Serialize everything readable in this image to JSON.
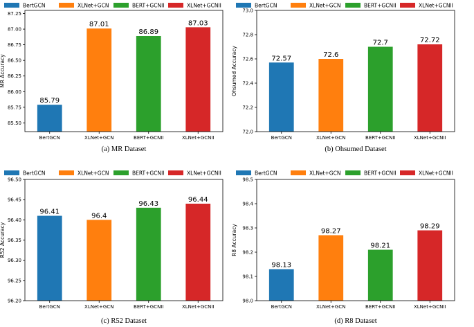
{
  "colors": [
    "#1f77b4",
    "#ff7f0e",
    "#2ca02c",
    "#d62728"
  ],
  "chart_data": [
    {
      "type": "bar",
      "categories": [
        "BertGCN",
        "XLNet+GCN",
        "BERT+GCNII",
        "XLNet+GCNII"
      ],
      "values": [
        85.79,
        87.01,
        86.89,
        87.03
      ],
      "value_labels": [
        "85.79",
        "87.01",
        "86.89",
        "87.03"
      ],
      "legend": [
        "BertGCN",
        "XLNet+GCN",
        "BERT+GCNII",
        "XLNet+GCNII"
      ],
      "ylabel": "MR Accuracy",
      "ylim": [
        85.36,
        87.3
      ],
      "yticks": [
        85.5,
        85.75,
        86.0,
        86.25,
        86.5,
        86.75,
        87.0,
        87.25
      ],
      "ytick_labels": [
        "85.50",
        "85.75",
        "86.00",
        "86.25",
        "86.50",
        "86.75",
        "87.00",
        "87.25"
      ],
      "caption": "(a) MR Dataset"
    },
    {
      "type": "bar",
      "categories": [
        "BertGCN",
        "XLNet+GCN",
        "BERT+GCNII",
        "XLNet+GCNII"
      ],
      "values": [
        72.57,
        72.6,
        72.7,
        72.72
      ],
      "value_labels": [
        "72.57",
        "72.6",
        "72.7",
        "72.72"
      ],
      "legend": [
        "BertGCN",
        "XLNet+GCN",
        "BERT+GCNII",
        "XLNet+GCNII"
      ],
      "ylabel": "Ohsumed Accuracy",
      "ylim": [
        72.0,
        73.0
      ],
      "yticks": [
        72.0,
        72.2,
        72.4,
        72.6,
        72.8,
        73.0
      ],
      "ytick_labels": [
        "72.0",
        "72.2",
        "72.4",
        "72.6",
        "72.8",
        "73.0"
      ],
      "caption": "(b) Ohsumed Dataset"
    },
    {
      "type": "bar",
      "categories": [
        "BertGCN",
        "XLNet+GCN",
        "BERT+GCNII",
        "XLNet+GCNII"
      ],
      "values": [
        96.41,
        96.4,
        96.43,
        96.44
      ],
      "value_labels": [
        "96.41",
        "96.4",
        "96.43",
        "96.44"
      ],
      "legend": [
        "BertGCN",
        "XLNet+GCN",
        "BERT+GCNII",
        "XLNet+GCNII"
      ],
      "ylabel": "R52 Accuracy",
      "ylim": [
        96.2,
        96.5
      ],
      "yticks": [
        96.2,
        96.25,
        96.3,
        96.35,
        96.4,
        96.45,
        96.5
      ],
      "ytick_labels": [
        "96.20",
        "96.25",
        "96.30",
        "96.35",
        "96.40",
        "96.45",
        "96.50"
      ],
      "caption": "(c) R52 Dataset"
    },
    {
      "type": "bar",
      "categories": [
        "BertGCN",
        "XLNet+GCN",
        "BERT+GCNII",
        "XLNet+GCNII"
      ],
      "values": [
        98.13,
        98.27,
        98.21,
        98.29
      ],
      "value_labels": [
        "98.13",
        "98.27",
        "98.21",
        "98.29"
      ],
      "legend": [
        "BertGCN",
        "XLNet+GCN",
        "BERT+GCNII",
        "XLNet+GCNII"
      ],
      "ylabel": "R8 Accuracy",
      "ylim": [
        98.0,
        98.5
      ],
      "yticks": [
        98.0,
        98.1,
        98.2,
        98.3,
        98.4,
        98.5
      ],
      "ytick_labels": [
        "98.0",
        "98.1",
        "98.2",
        "98.3",
        "98.4",
        "98.5"
      ],
      "caption": "(d) R8 Dataset"
    }
  ]
}
